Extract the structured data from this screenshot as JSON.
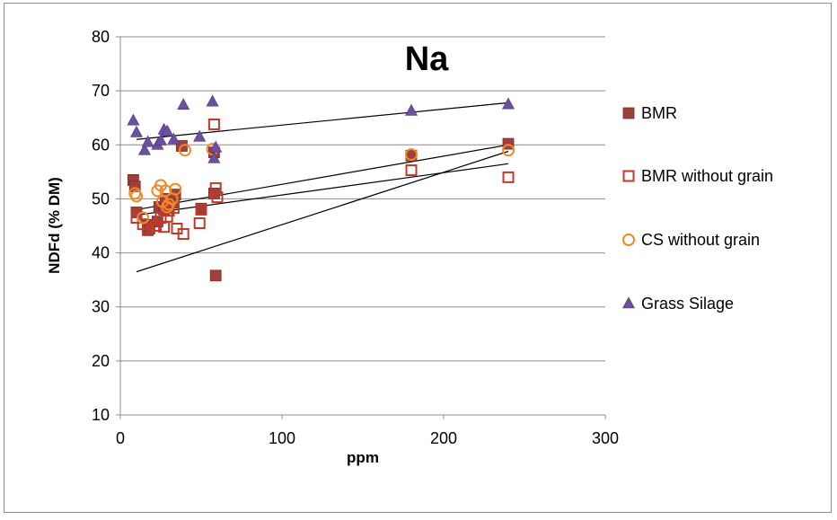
{
  "chart_data": {
    "type": "scatter",
    "title": "Na",
    "xlabel": "ppm",
    "ylabel": "NDFd (% DM)",
    "xlim": [
      0,
      300
    ],
    "ylim": [
      10,
      80
    ],
    "xticks": [
      0,
      100,
      200,
      300
    ],
    "yticks": [
      10,
      20,
      30,
      40,
      50,
      60,
      70,
      80
    ],
    "grid": "horizontal",
    "legend_position": "right",
    "series": [
      {
        "name": "BMR",
        "marker": "filled-square",
        "color": "#a0403a",
        "points": [
          [
            8,
            53.5
          ],
          [
            9,
            52.3
          ],
          [
            10,
            47.5
          ],
          [
            17,
            44.2
          ],
          [
            17,
            45.2
          ],
          [
            18,
            44.5
          ],
          [
            23,
            45.8
          ],
          [
            24,
            48.5
          ],
          [
            27,
            48
          ],
          [
            28,
            50
          ],
          [
            33,
            49.3
          ],
          [
            34,
            50.8
          ],
          [
            38,
            59.8
          ],
          [
            50,
            48.2
          ],
          [
            58,
            58.6
          ],
          [
            58,
            51
          ],
          [
            59,
            35.8
          ],
          [
            180,
            58
          ],
          [
            240,
            60.2
          ]
        ],
        "trendline": [
          [
            10,
            36.5
          ],
          [
            240,
            58.8
          ]
        ]
      },
      {
        "name": "BMR without grain",
        "marker": "open-square",
        "color": "#c0392b",
        "points": [
          [
            10,
            46.5
          ],
          [
            14,
            45.3
          ],
          [
            17,
            44.5
          ],
          [
            22,
            45
          ],
          [
            25,
            46.5
          ],
          [
            27,
            44.8
          ],
          [
            29,
            46.7
          ],
          [
            30,
            47.8
          ],
          [
            33,
            48.3
          ],
          [
            35,
            44.5
          ],
          [
            39,
            43.5
          ],
          [
            49,
            45.5
          ],
          [
            50,
            48
          ],
          [
            58,
            63.8
          ],
          [
            59,
            52
          ],
          [
            60,
            50.3
          ],
          [
            180,
            55.3
          ],
          [
            240,
            54
          ]
        ],
        "trendline": [
          [
            10,
            47
          ],
          [
            240,
            56.5
          ]
        ]
      },
      {
        "name": "CS without grain",
        "marker": "open-circle",
        "color": "#f0882a",
        "points": [
          [
            9,
            51
          ],
          [
            10,
            50.5
          ],
          [
            14,
            46.5
          ],
          [
            23,
            51.5
          ],
          [
            25,
            52.5
          ],
          [
            26,
            49.5
          ],
          [
            28,
            51.5
          ],
          [
            29,
            48.5
          ],
          [
            30,
            49
          ],
          [
            32,
            50
          ],
          [
            34,
            51.8
          ],
          [
            40,
            59
          ],
          [
            57,
            59.2
          ],
          [
            180,
            58.2
          ],
          [
            240,
            59
          ]
        ],
        "trendline": [
          [
            10,
            48
          ],
          [
            240,
            60
          ]
        ]
      },
      {
        "name": "Grass Silage",
        "marker": "filled-triangle",
        "color": "#6b4fa0",
        "points": [
          [
            8,
            64.5
          ],
          [
            10,
            62.3
          ],
          [
            15,
            59
          ],
          [
            17,
            60.5
          ],
          [
            23,
            60
          ],
          [
            25,
            60.8
          ],
          [
            27,
            62.8
          ],
          [
            29,
            62.5
          ],
          [
            33,
            61
          ],
          [
            39,
            67.4
          ],
          [
            49,
            61.5
          ],
          [
            57,
            68
          ],
          [
            58,
            57.5
          ],
          [
            59,
            59.5
          ],
          [
            180,
            66.3
          ],
          [
            240,
            67.5
          ]
        ],
        "trendline": [
          [
            10,
            61
          ],
          [
            240,
            67.8
          ]
        ]
      }
    ]
  }
}
